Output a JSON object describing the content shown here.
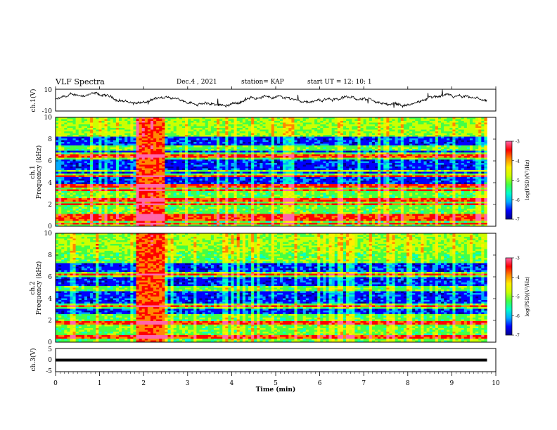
{
  "header": {
    "title": "VLF Spectra",
    "date": "Dec.4 , 2021",
    "station": "station= KAP",
    "start": "start UT = 12: 10: 1"
  },
  "chart_data": [
    {
      "type": "line",
      "id": "ch1-waveform",
      "ylabel": "ch.1(V)",
      "ylim": [
        -10,
        10
      ],
      "yticks": [
        "10",
        "-10"
      ],
      "xlim": [
        0,
        9.8
      ],
      "description_series": "amplitude waveform, wandering between about -5 and 6 V"
    },
    {
      "type": "heatmap",
      "id": "ch1-spectrogram",
      "ylabel": "ch.1 Frequency (kHz)",
      "ylim": [
        0,
        10
      ],
      "yticks": [
        "0",
        "2",
        "4",
        "6",
        "8",
        "10"
      ],
      "xlim": [
        0,
        9.8
      ],
      "colorbar": {
        "label": "log(PSD)(V²/Hz)",
        "range": [
          -7,
          -3
        ],
        "ticks": [
          "-3",
          "-4",
          "-5",
          "-6",
          "-7"
        ]
      },
      "bright_lines_khz": [
        0.25,
        0.6,
        1.0,
        2.0,
        2.4,
        3.3,
        3.7,
        4.6,
        5.1,
        6.5
      ],
      "dark_bands_khz": [
        [
          3.9,
          4.5
        ],
        [
          4.9,
          6.1
        ],
        [
          6.7,
          7.0
        ],
        [
          7.5,
          8.2
        ]
      ],
      "burst_interval_min": [
        1.8,
        2.5
      ]
    },
    {
      "type": "heatmap",
      "id": "ch2-spectrogram",
      "ylabel": "ch.2 Frequency (kHz)",
      "ylim": [
        0,
        10
      ],
      "yticks": [
        "0",
        "2",
        "4",
        "6",
        "8",
        "10"
      ],
      "xlim": [
        0,
        9.8
      ],
      "colorbar": {
        "label": "log(PSD)(V²/Hz)",
        "range": [
          -7,
          -3
        ],
        "ticks": [
          "-3",
          "-4",
          "-5",
          "-6",
          "-7"
        ]
      },
      "bright_lines_khz": [
        0.5,
        1.8,
        3.3,
        6.2
      ],
      "dark_bands_khz": [
        [
          2.6,
          3.0
        ],
        [
          3.6,
          4.6
        ],
        [
          5.2,
          6.0
        ],
        [
          6.4,
          7.2
        ]
      ],
      "burst_interval_min": [
        1.85,
        2.5
      ]
    },
    {
      "type": "line",
      "id": "ch3-trace",
      "ylabel": "ch.3(V)",
      "ylim": [
        -5,
        5
      ],
      "yticks": [
        "5",
        "0",
        "-5"
      ],
      "xlim": [
        0,
        9.8
      ],
      "value_band_v": [
        -0.6,
        0.6
      ]
    }
  ],
  "xaxis": {
    "label": "Time (min)",
    "ticks": [
      "0",
      "1",
      "2",
      "3",
      "4",
      "5",
      "6",
      "7",
      "8",
      "9",
      "10"
    ],
    "range": [
      0,
      10
    ]
  },
  "colors": {
    "colormap": [
      "#00008c",
      "#0000ff",
      "#00aaff",
      "#00ffcc",
      "#44ff44",
      "#ccff00",
      "#ffee00",
      "#ff8800",
      "#ff0000",
      "#ff66aa",
      "#ffffff"
    ]
  }
}
